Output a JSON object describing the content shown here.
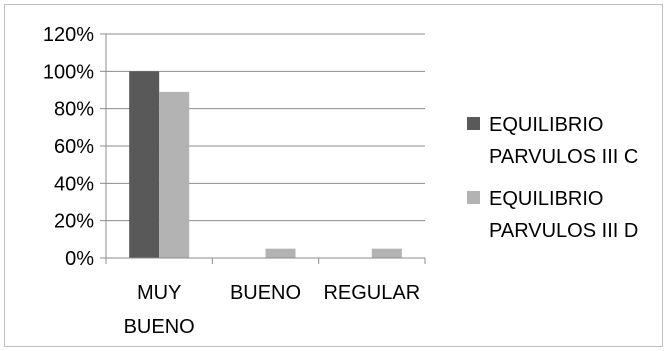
{
  "chart_data": {
    "type": "bar",
    "categories": [
      "MUY BUENO",
      "BUENO",
      "REGULAR"
    ],
    "category_lines": [
      [
        "MUY",
        "BUENO"
      ],
      [
        "BUENO"
      ],
      [
        "REGULAR"
      ]
    ],
    "series": [
      {
        "name": "EQUILIBRIO PARVULOS III C",
        "name_lines": [
          "EQUILIBRIO",
          "PARVULOS III C"
        ],
        "color": "#595959",
        "values": [
          100,
          0,
          0
        ]
      },
      {
        "name": "EQUILIBRIO PARVULOS III D",
        "name_lines": [
          "EQUILIBRIO",
          "PARVULOS III D"
        ],
        "color": "#b3b3b3",
        "values": [
          89,
          5,
          5
        ]
      }
    ],
    "yticks": [
      "0%",
      "20%",
      "40%",
      "60%",
      "80%",
      "100%",
      "120%"
    ],
    "ylim": [
      0,
      120
    ],
    "grid": true,
    "legend": "right",
    "title": "",
    "xlabel": "",
    "ylabel": ""
  }
}
